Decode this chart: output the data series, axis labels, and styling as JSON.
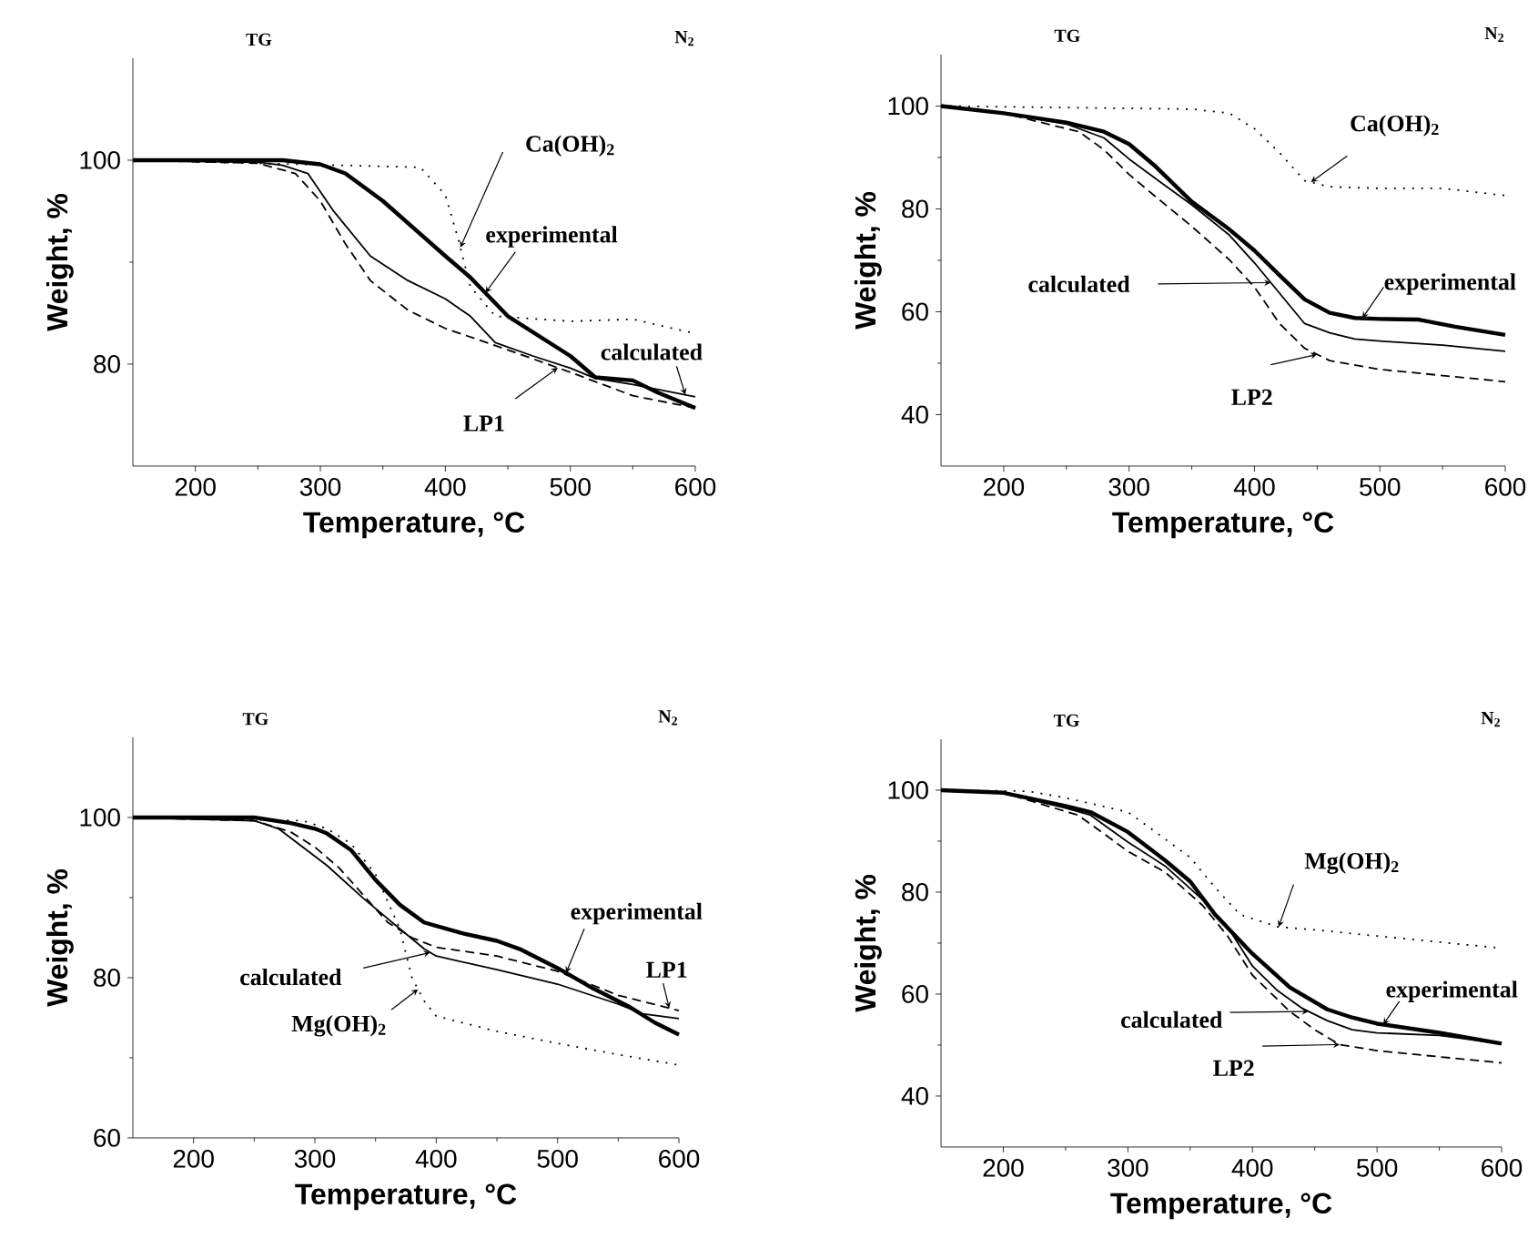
{
  "chart_data": [
    {
      "type": "line",
      "xlabel": "Temperature, °C",
      "ylabel": "Weight, %",
      "xlim": [
        150,
        600
      ],
      "ylim": [
        70,
        110
      ],
      "xticks": [
        200,
        300,
        400,
        500,
        600
      ],
      "yticks": [
        80,
        100
      ],
      "annotations": [
        "TG",
        "N$_{2}$"
      ],
      "series": [
        {
          "name": "experimental",
          "color": "#000000",
          "line_style": "solid",
          "x": [
            150,
            270,
            300,
            320,
            350,
            400,
            420,
            450,
            500,
            520,
            550,
            570,
            600
          ],
          "values": [
            100,
            100,
            99.6,
            98.7,
            96,
            90.6,
            88.5,
            84.7,
            80.8,
            78.7,
            78.4,
            77.2,
            75.7
          ]
        },
        {
          "name": "calculated",
          "color": "#000000",
          "line_style": "solid",
          "x": [
            150,
            250,
            270,
            290,
            310,
            340,
            370,
            400,
            420,
            440,
            470,
            500,
            520,
            550,
            600
          ],
          "values": [
            100,
            99.8,
            99.5,
            98.7,
            95.1,
            90.6,
            88.2,
            86.4,
            84.7,
            82.1,
            80.8,
            79.6,
            78.6,
            78,
            76.8
          ]
        },
        {
          "name": "LP1",
          "color": "#000000",
          "line_style": "dashed",
          "x": [
            150,
            250,
            280,
            300,
            320,
            340,
            370,
            400,
            450,
            500,
            550,
            600
          ],
          "values": [
            100,
            99.7,
            98.7,
            96,
            91.8,
            88.2,
            85.3,
            83.5,
            81.4,
            79.2,
            76.9,
            75.7
          ]
        },
        {
          "name": "Ca(OH)$_{2}$",
          "color": "#000000",
          "line_style": "dotted",
          "x": [
            150,
            380,
            400,
            410,
            420,
            440,
            500,
            550,
            600
          ],
          "values": [
            100,
            99.3,
            96.6,
            92.4,
            87.6,
            84.7,
            84.2,
            84.4,
            83
          ]
        }
      ]
    },
    {
      "type": "line",
      "xlabel": "Temperature, °C",
      "ylabel": "Weight, %",
      "xlim": [
        150,
        600
      ],
      "ylim": [
        30,
        110
      ],
      "xticks": [
        200,
        300,
        400,
        500,
        600
      ],
      "yticks": [
        40,
        60,
        80,
        100
      ],
      "annotations": [
        "TG",
        "N$_{2}$"
      ],
      "series": [
        {
          "name": "experimental",
          "color": "#000000",
          "line_style": "solid",
          "x": [
            150,
            200,
            250,
            280,
            300,
            320,
            350,
            380,
            400,
            420,
            440,
            460,
            480,
            500,
            530,
            560,
            600
          ],
          "values": [
            100,
            98.6,
            96.8,
            95,
            92.6,
            88.5,
            81.4,
            76,
            71.9,
            67.1,
            62.4,
            59.8,
            58.8,
            58.6,
            58.5,
            57.1,
            55.5
          ]
        },
        {
          "name": "calculated",
          "color": "#000000",
          "line_style": "solid",
          "x": [
            150,
            200,
            250,
            280,
            300,
            320,
            350,
            380,
            400,
            420,
            440,
            460,
            480,
            500,
            550,
            600
          ],
          "values": [
            100,
            98.6,
            96.5,
            93.8,
            89.7,
            86.1,
            80.8,
            74.9,
            69.5,
            63.6,
            57.7,
            55.9,
            54.7,
            54.3,
            53.5,
            52.3
          ]
        },
        {
          "name": "LP2",
          "color": "#000000",
          "line_style": "dashed",
          "x": [
            150,
            200,
            260,
            280,
            300,
            320,
            350,
            380,
            400,
            420,
            440,
            460,
            500,
            550,
            600
          ],
          "values": [
            100,
            98.6,
            95,
            91.5,
            86.7,
            82.6,
            76.6,
            70.1,
            64.8,
            57.7,
            52.9,
            50.5,
            48.8,
            47.6,
            46.4
          ]
        },
        {
          "name": "Ca(OH)$_{2}$",
          "color": "#000000",
          "line_style": "dotted",
          "x": [
            150,
            350,
            380,
            400,
            420,
            440,
            460,
            500,
            550,
            600
          ],
          "values": [
            100,
            99.4,
            98.6,
            95.6,
            90.9,
            85.5,
            84.3,
            84,
            84,
            82.6
          ]
        }
      ]
    },
    {
      "type": "line",
      "xlabel": "Temperature, °C",
      "ylabel": "Weight, %",
      "xlim": [
        150,
        600
      ],
      "ylim": [
        60,
        110
      ],
      "xticks": [
        200,
        300,
        400,
        500,
        600
      ],
      "yticks": [
        60,
        80,
        100
      ],
      "annotations": [
        "TG",
        "N$_{2}$"
      ],
      "series": [
        {
          "name": "experimental",
          "color": "#000000",
          "line_style": "solid",
          "x": [
            150,
            250,
            280,
            300,
            310,
            330,
            350,
            370,
            390,
            420,
            450,
            470,
            500,
            530,
            560,
            580,
            600
          ],
          "values": [
            100,
            100,
            99.3,
            98.6,
            98,
            95.9,
            92.2,
            89.1,
            86.9,
            85.6,
            84.6,
            83.5,
            81.2,
            78.6,
            76.3,
            74.4,
            72.9
          ]
        },
        {
          "name": "calculated",
          "color": "#000000",
          "line_style": "solid",
          "x": [
            150,
            250,
            270,
            290,
            310,
            340,
            370,
            390,
            400,
            450,
            500,
            550,
            570,
            600
          ],
          "values": [
            100,
            99.6,
            98.6,
            96.3,
            94,
            89.9,
            86.1,
            83.6,
            82.7,
            81,
            79.2,
            76.7,
            75.5,
            74.9
          ]
        },
        {
          "name": "LP1",
          "color": "#000000",
          "line_style": "dashed",
          "x": [
            150,
            250,
            280,
            300,
            320,
            340,
            360,
            380,
            400,
            450,
            500,
            550,
            600
          ],
          "values": [
            100,
            99.6,
            98.2,
            96.3,
            93.7,
            90.3,
            86.9,
            85,
            83.8,
            82.7,
            80.8,
            77.8,
            75.9
          ]
        },
        {
          "name": "Mg(OH)$_{2}$",
          "color": "#000000",
          "line_style": "dotted",
          "x": [
            150,
            290,
            310,
            330,
            350,
            370,
            380,
            390,
            400,
            450,
            500,
            550,
            600
          ],
          "values": [
            100,
            99.6,
            98.6,
            96.7,
            92.9,
            86.1,
            80,
            77.1,
            75.2,
            73.3,
            71.8,
            70.4,
            69.1
          ]
        }
      ]
    },
    {
      "type": "line",
      "xlabel": "Temperature, °C",
      "ylabel": "Weight, %",
      "xlim": [
        150,
        600
      ],
      "ylim": [
        30,
        110
      ],
      "xticks": [
        200,
        300,
        400,
        500,
        600
      ],
      "yticks": [
        40,
        60,
        80,
        100
      ],
      "annotations": [
        "TG",
        "N$_{2}$"
      ],
      "series": [
        {
          "name": "experimental",
          "color": "#000000",
          "line_style": "solid",
          "x": [
            150,
            200,
            250,
            270,
            300,
            330,
            350,
            370,
            400,
            430,
            460,
            480,
            500,
            550,
            600
          ],
          "values": [
            100,
            99.5,
            96.9,
            95.7,
            91.8,
            86.2,
            82.1,
            75.6,
            67.9,
            61.3,
            57,
            55.4,
            54.2,
            52.4,
            50.3
          ]
        },
        {
          "name": "calculated",
          "color": "#000000",
          "line_style": "solid",
          "x": [
            150,
            200,
            250,
            270,
            300,
            330,
            360,
            380,
            400,
            420,
            440,
            460,
            480,
            500,
            550,
            600
          ],
          "values": [
            100,
            99.5,
            96.5,
            95.1,
            89.8,
            85.1,
            78.5,
            73.2,
            65.5,
            60.7,
            57.2,
            54.8,
            53,
            52.4,
            51.9,
            50.3
          ]
        },
        {
          "name": "LP2",
          "color": "#000000",
          "line_style": "dashed",
          "x": [
            150,
            200,
            260,
            280,
            300,
            330,
            360,
            380,
            400,
            430,
            450,
            470,
            500,
            550,
            600
          ],
          "values": [
            100,
            99.5,
            95.1,
            91.6,
            88,
            83.9,
            77.4,
            71.4,
            63.7,
            56.6,
            53,
            50.1,
            48.9,
            47.7,
            46.5
          ]
        },
        {
          "name": "Mg(OH)$_{2}$",
          "color": "#000000",
          "line_style": "dotted",
          "x": [
            150,
            220,
            250,
            300,
            320,
            350,
            370,
            390,
            420,
            450,
            500,
            550,
            600
          ],
          "values": [
            100,
            99.8,
            98.5,
            95.7,
            92.2,
            86.8,
            80.9,
            75.6,
            73.2,
            72.6,
            71.4,
            70.2,
            69
          ]
        }
      ]
    }
  ]
}
